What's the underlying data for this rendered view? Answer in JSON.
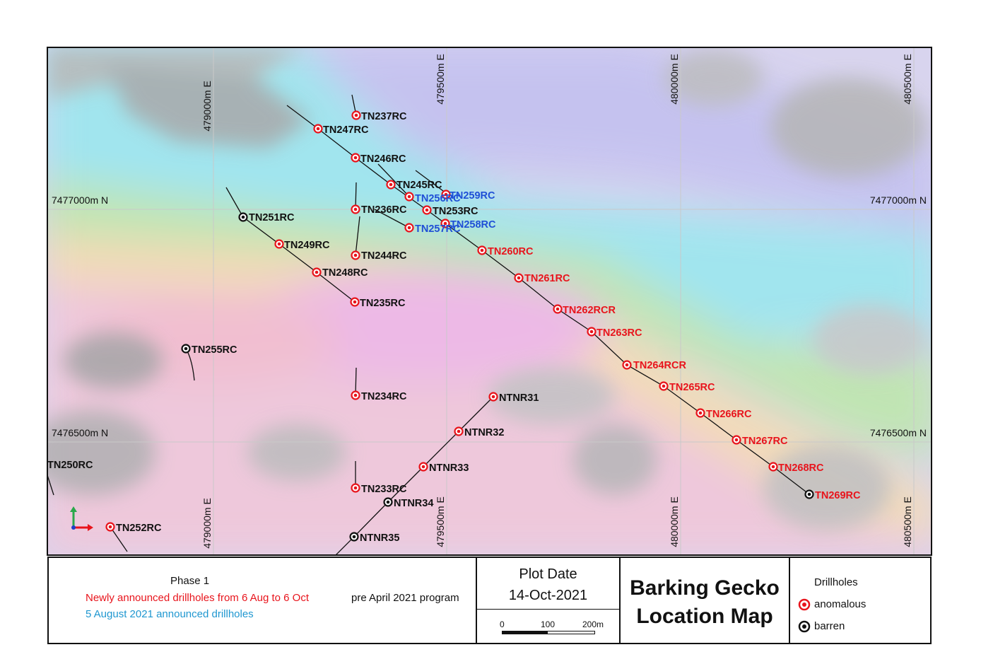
{
  "map": {
    "grid_easting_labels": [
      "479000m E",
      "479500m E",
      "480000m E",
      "480500m E"
    ],
    "grid_northing_labels": [
      "7477000m N",
      "7476500m N"
    ],
    "colors": {
      "anomalous": "#e8141c",
      "barren": "#111111",
      "blue_label": "#1f4fd6",
      "red_label": "#e8141c",
      "black_label": "#111111"
    },
    "drillholes": [
      {
        "name": "TN237RC",
        "status": "anomalous",
        "label_color": "black"
      },
      {
        "name": "TN247RC",
        "status": "anomalous",
        "label_color": "black"
      },
      {
        "name": "TN246RC",
        "status": "anomalous",
        "label_color": "black"
      },
      {
        "name": "TN245RC",
        "status": "anomalous",
        "label_color": "black"
      },
      {
        "name": "TN256RC",
        "status": "anomalous",
        "label_color": "blue"
      },
      {
        "name": "TN259RC",
        "status": "anomalous",
        "label_color": "blue"
      },
      {
        "name": "TN236RC",
        "status": "anomalous",
        "label_color": "black"
      },
      {
        "name": "TN253RC",
        "status": "anomalous",
        "label_color": "black"
      },
      {
        "name": "TN251RC",
        "status": "barren",
        "label_color": "black"
      },
      {
        "name": "TN257RC",
        "status": "anomalous",
        "label_color": "blue"
      },
      {
        "name": "TN258RC",
        "status": "anomalous",
        "label_color": "blue"
      },
      {
        "name": "TN249RC",
        "status": "anomalous",
        "label_color": "black"
      },
      {
        "name": "TN244RC",
        "status": "anomalous",
        "label_color": "black"
      },
      {
        "name": "TN260RC",
        "status": "anomalous",
        "label_color": "red"
      },
      {
        "name": "TN248RC",
        "status": "anomalous",
        "label_color": "black"
      },
      {
        "name": "TN261RC",
        "status": "anomalous",
        "label_color": "red"
      },
      {
        "name": "TN235RC",
        "status": "anomalous",
        "label_color": "black"
      },
      {
        "name": "TN262RCR",
        "status": "anomalous",
        "label_color": "red"
      },
      {
        "name": "TN263RC",
        "status": "anomalous",
        "label_color": "red"
      },
      {
        "name": "TN255RC",
        "status": "barren",
        "label_color": "black"
      },
      {
        "name": "TN264RCR",
        "status": "anomalous",
        "label_color": "red"
      },
      {
        "name": "TN265RC",
        "status": "anomalous",
        "label_color": "red"
      },
      {
        "name": "TN234RC",
        "status": "anomalous",
        "label_color": "black"
      },
      {
        "name": "NTNR31",
        "status": "anomalous",
        "label_color": "black"
      },
      {
        "name": "TN266RC",
        "status": "anomalous",
        "label_color": "red"
      },
      {
        "name": "NTNR32",
        "status": "anomalous",
        "label_color": "black"
      },
      {
        "name": "TN267RC",
        "status": "anomalous",
        "label_color": "red"
      },
      {
        "name": "TN250RC",
        "status": "none",
        "label_color": "black"
      },
      {
        "name": "NTNR33",
        "status": "anomalous",
        "label_color": "black"
      },
      {
        "name": "TN268RC",
        "status": "anomalous",
        "label_color": "red"
      },
      {
        "name": "TN233RC",
        "status": "anomalous",
        "label_color": "black"
      },
      {
        "name": "TN269RC",
        "status": "barren",
        "label_color": "red"
      },
      {
        "name": "NTNR34",
        "status": "barren",
        "label_color": "black"
      },
      {
        "name": "TN252RC",
        "status": "anomalous",
        "label_color": "black"
      },
      {
        "name": "NTNR35",
        "status": "barren",
        "label_color": "black"
      }
    ]
  },
  "legend": {
    "phase_title": "Phase 1",
    "newly_announced": "Newly announced drillholes from 6 Aug to 6 Oct",
    "aug_announced": "5 August 2021 announced drillholes",
    "pre_april": "pre April 2021 program",
    "plot_date_label": "Plot Date",
    "plot_date_value": "14-Oct-2021",
    "scale_labels": [
      "0",
      "100",
      "200m"
    ],
    "title_line1": "Barking Gecko",
    "title_line2": "Location Map",
    "drillholes_heading": "Drillholes",
    "anomalous_label": "anomalous",
    "barren_label": "barren",
    "colors": {
      "red_text": "#e8141c",
      "cyan_text": "#1f97d0"
    }
  }
}
